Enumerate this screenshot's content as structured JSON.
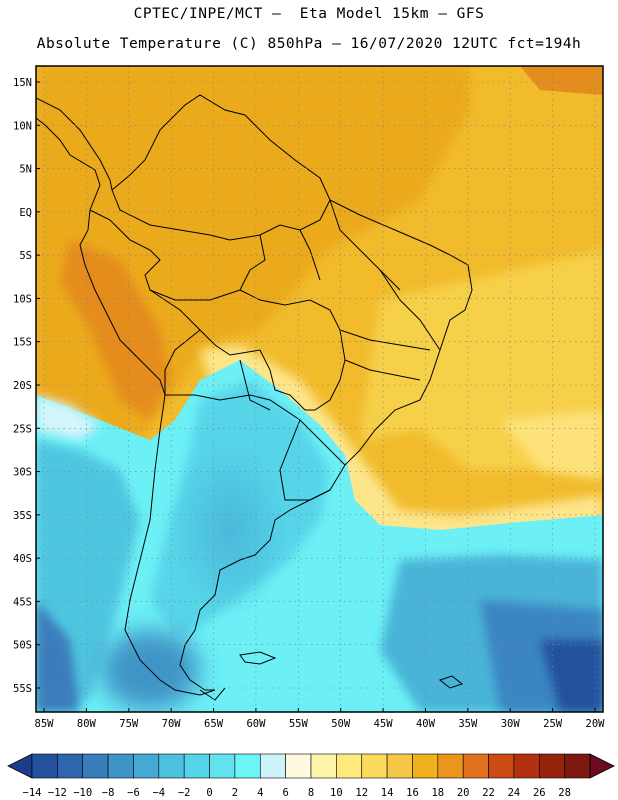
{
  "header": {
    "line1": "CPTEC/INPE/MCT –  Eta Model 15km – GFS",
    "line2": "Absolute Temperature (C) 850hPa – 16/07/2020 12UTC fct=194h"
  },
  "map": {
    "variable": "Absolute Temperature (C) 850hPa",
    "region": "South America",
    "lon_range": [
      -85,
      -20
    ],
    "lat_range": [
      -58,
      17
    ],
    "lat_labels": [
      {
        "lat": 15,
        "label": "15N"
      },
      {
        "lat": 10,
        "label": "10N"
      },
      {
        "lat": 5,
        "label": "5N"
      },
      {
        "lat": 0,
        "label": "EQ"
      },
      {
        "lat": -5,
        "label": "5S"
      },
      {
        "lat": -10,
        "label": "10S"
      },
      {
        "lat": -15,
        "label": "15S"
      },
      {
        "lat": -20,
        "label": "20S"
      },
      {
        "lat": -25,
        "label": "25S"
      },
      {
        "lat": -30,
        "label": "30S"
      },
      {
        "lat": -35,
        "label": "35S"
      },
      {
        "lat": -40,
        "label": "40S"
      },
      {
        "lat": -45,
        "label": "45S"
      },
      {
        "lat": -50,
        "label": "50S"
      },
      {
        "lat": -55,
        "label": "55S"
      }
    ],
    "lon_labels": [
      {
        "lon": -85,
        "label": "85W"
      },
      {
        "lon": -80,
        "label": "80W"
      },
      {
        "lon": -75,
        "label": "75W"
      },
      {
        "lon": -70,
        "label": "70W"
      },
      {
        "lon": -65,
        "label": "65W"
      },
      {
        "lon": -60,
        "label": "60W"
      },
      {
        "lon": -55,
        "label": "55W"
      },
      {
        "lon": -50,
        "label": "50W"
      },
      {
        "lon": -45,
        "label": "45W"
      },
      {
        "lon": -40,
        "label": "40W"
      },
      {
        "lon": -35,
        "label": "35W"
      },
      {
        "lon": -30,
        "label": "30W"
      },
      {
        "lon": -25,
        "label": "25W"
      },
      {
        "lon": -20,
        "label": "20W"
      }
    ]
  },
  "colorbar": {
    "labels": [
      "-14",
      "-12",
      "-10",
      "-8",
      "-6",
      "-4",
      "-2",
      "0",
      "2",
      "4",
      "6",
      "8",
      "10",
      "12",
      "14",
      "16",
      "18",
      "20",
      "22",
      "24",
      "26",
      "28"
    ],
    "colors": [
      "#1e3c8c",
      "#24519d",
      "#2d66ad",
      "#3a7dbc",
      "#3f95c8",
      "#45a9d3",
      "#4dbfdf",
      "#55d4e8",
      "#60e2ef",
      "#6cf5f7",
      "#cdf3fa",
      "#fff9e0",
      "#fff5a8",
      "#ffea7e",
      "#fbda5e",
      "#f5c84a",
      "#efb21c",
      "#ea961e",
      "#e0701c",
      "#cc4b14",
      "#b23210",
      "#96240c",
      "#7c1a10",
      "#6a0c20"
    ]
  }
}
